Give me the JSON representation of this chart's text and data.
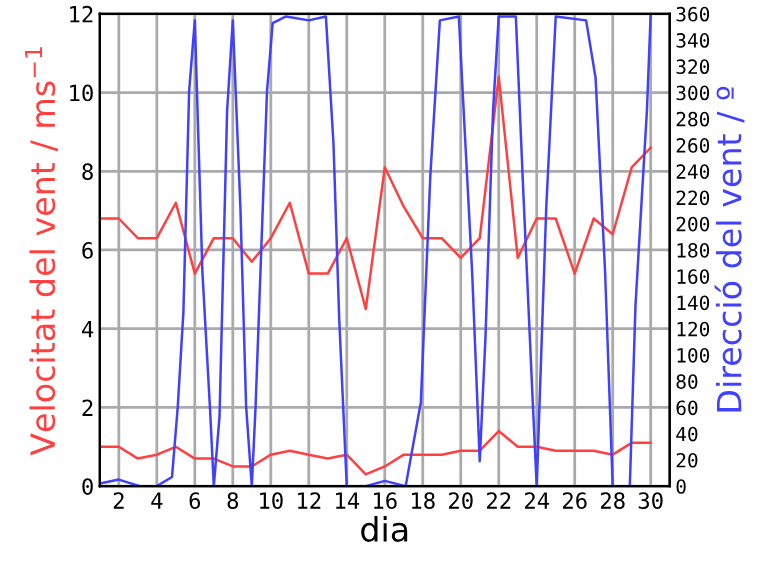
{
  "chart_data": {
    "type": "line",
    "xlabel": "dia",
    "ylabel": "Velocitat del vent / ms$^{−1}$",
    "y2label": "Direcció del vent / º",
    "xlim": [
      1,
      31
    ],
    "xticks": [
      2,
      4,
      6,
      8,
      10,
      12,
      14,
      16,
      18,
      20,
      22,
      24,
      26,
      28,
      30
    ],
    "ylim": [
      0,
      12
    ],
    "yticks": [
      0,
      2,
      4,
      6,
      8,
      10,
      12
    ],
    "y2lim": [
      0,
      360
    ],
    "y2ticks": [
      0,
      20,
      40,
      60,
      80,
      100,
      120,
      140,
      160,
      180,
      200,
      220,
      240,
      260,
      280,
      300,
      320,
      340,
      360
    ],
    "grid": true,
    "marker": "none",
    "line_style": "solid",
    "series": [
      {
        "color": "#ff4040",
        "x": [
          1,
          2,
          3,
          4,
          5,
          6,
          7,
          8,
          9,
          10,
          11,
          12,
          13,
          14,
          15,
          16,
          17,
          18,
          19,
          20,
          21,
          22,
          23,
          24,
          25,
          26,
          27,
          28,
          29,
          30
        ],
        "values": [
          6.8,
          6.8,
          6.3,
          6.3,
          7.2,
          5.4,
          6.3,
          6.3,
          5.7,
          6.3,
          7.2,
          5.4,
          5.4,
          6.3,
          4.5,
          8.1,
          7.1,
          6.3,
          6.3,
          5.8,
          6.3,
          10.4,
          5.8,
          6.8,
          6.8,
          5.4,
          6.8,
          6.4,
          8.1,
          8.6
        ]
      },
      {
        "color": "#ff4040",
        "x": [
          1,
          2,
          3,
          4,
          5,
          6,
          7,
          8,
          9,
          10,
          11,
          12,
          13,
          14,
          15,
          16,
          17,
          18,
          19,
          20,
          21,
          22,
          23,
          24,
          25,
          26,
          27,
          28,
          29,
          30
        ],
        "values": [
          1.0,
          1.0,
          0.7,
          0.8,
          1.0,
          0.7,
          0.7,
          0.5,
          0.5,
          0.8,
          0.9,
          0.8,
          0.7,
          0.8,
          0.3,
          0.5,
          0.8,
          0.8,
          0.8,
          0.9,
          0.9,
          1.4,
          1.0,
          1.0,
          0.9,
          0.9,
          0.9,
          0.8,
          1.1,
          1.1
        ]
      },
      {
        "color": "#4040ff",
        "axis": "y2",
        "x": [
          1,
          2,
          3.1,
          4,
          4.8,
          5.1,
          5.4,
          5.7,
          6,
          6.4,
          6.8,
          7,
          7.3,
          7.7,
          8,
          8.4,
          8.7,
          9,
          9.2,
          9.8,
          10.1,
          10.8,
          12,
          12.9,
          13.3,
          13.6,
          14,
          15,
          16,
          17.1,
          17.9,
          18.4,
          18.9,
          19.9,
          20.1,
          20.6,
          21,
          21.3,
          21.7,
          22,
          22.9,
          23.3,
          23.8,
          24,
          24.5,
          25,
          26.6,
          27.1,
          27.6,
          28,
          28.9,
          29.2,
          29.8,
          30
        ],
        "values": [
          2,
          5,
          0,
          0,
          7,
          60,
          133,
          301,
          355,
          163,
          59,
          0,
          53,
          286,
          355,
          212,
          61,
          0,
          61,
          301,
          353,
          358,
          355,
          358,
          261,
          128,
          0,
          0,
          4,
          0,
          64,
          237,
          355,
          358,
          301,
          163,
          19,
          113,
          286,
          358,
          358,
          222,
          61,
          0,
          212,
          358,
          355,
          311,
          163,
          0,
          0,
          138,
          286,
          360
        ]
      }
    ]
  }
}
